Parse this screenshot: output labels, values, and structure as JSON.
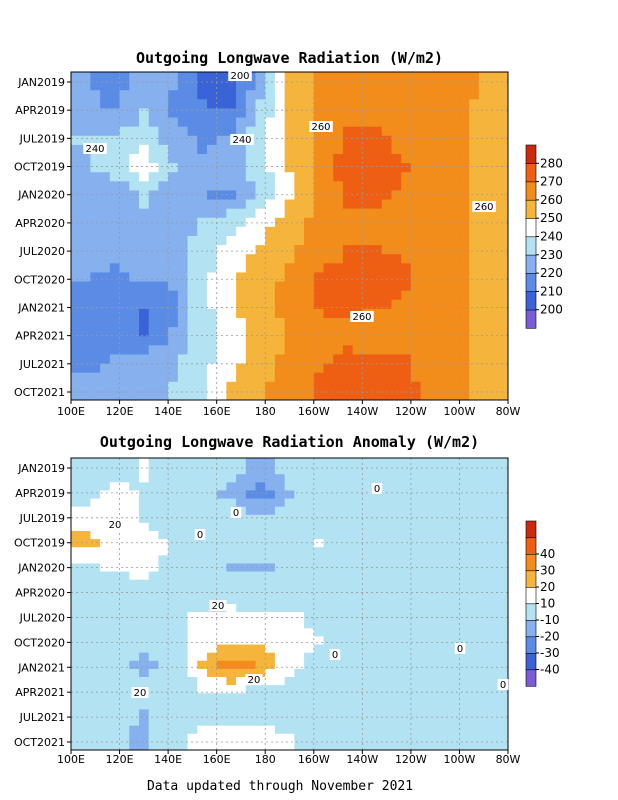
{
  "footer": "Data updated through November 2021",
  "chart_data": [
    {
      "type": "heatmap",
      "title": "Outgoing Longwave Radiation (W/m2)",
      "xlabel": "",
      "ylabel": "",
      "x_ticks": [
        "100E",
        "120E",
        "140E",
        "160E",
        "180",
        "160W",
        "140W",
        "120W",
        "100W",
        "80W"
      ],
      "y_ticks": [
        "JAN2019",
        "APR2019",
        "JUL2019",
        "OCT2019",
        "JAN2020",
        "APR2020",
        "JUL2020",
        "OCT2020",
        "JAN2021",
        "APR2021",
        "JUL2021",
        "OCT2021"
      ],
      "colorbar": {
        "levels": [
          200,
          210,
          220,
          230,
          240,
          250,
          260,
          270,
          280
        ],
        "colors": [
          "#7b5bd6",
          "#3b63d8",
          "#5a8ce6",
          "#86b0ee",
          "#b3e3f3",
          "#ffffff",
          "#f5b43c",
          "#f28c1a",
          "#ee5f13",
          "#cc2a0f"
        ]
      },
      "contour_labels": [
        "200",
        "240",
        "240",
        "260",
        "260",
        "260"
      ],
      "values": [
        [
          221,
          215,
          225,
          220,
          208,
          202,
          228,
          255,
          262,
          264,
          266,
          265,
          264,
          262,
          258
        ],
        [
          224,
          220,
          230,
          218,
          212,
          210,
          232,
          254,
          262,
          266,
          266,
          264,
          262,
          260,
          256
        ],
        [
          230,
          232,
          238,
          225,
          218,
          222,
          238,
          250,
          262,
          272,
          272,
          266,
          262,
          260,
          256
        ],
        [
          228,
          236,
          246,
          230,
          222,
          224,
          236,
          250,
          264,
          274,
          274,
          270,
          264,
          260,
          256
        ],
        [
          225,
          220,
          232,
          222,
          220,
          218,
          230,
          248,
          262,
          272,
          272,
          268,
          262,
          260,
          256
        ],
        [
          226,
          220,
          228,
          224,
          230,
          236,
          245,
          256,
          262,
          266,
          266,
          264,
          262,
          260,
          256
        ],
        [
          224,
          222,
          225,
          226,
          234,
          244,
          252,
          258,
          264,
          270,
          270,
          268,
          262,
          260,
          256
        ],
        [
          220,
          218,
          222,
          222,
          236,
          248,
          255,
          262,
          272,
          274,
          274,
          272,
          264,
          260,
          256
        ],
        [
          215,
          213,
          210,
          218,
          236,
          248,
          256,
          264,
          272,
          274,
          272,
          268,
          264,
          260,
          256
        ],
        [
          216,
          215,
          208,
          220,
          236,
          246,
          254,
          260,
          264,
          266,
          262,
          262,
          262,
          260,
          256
        ],
        [
          218,
          220,
          222,
          228,
          236,
          246,
          256,
          262,
          268,
          272,
          272,
          270,
          266,
          260,
          256
        ],
        [
          222,
          222,
          226,
          230,
          238,
          250,
          258,
          264,
          272,
          276,
          274,
          272,
          266,
          260,
          256
        ]
      ]
    },
    {
      "type": "heatmap",
      "title": "Outgoing Longwave Radiation Anomaly (W/m2)",
      "xlabel": "",
      "ylabel": "",
      "x_ticks": [
        "100E",
        "120E",
        "140E",
        "160E",
        "180",
        "160W",
        "140W",
        "120W",
        "100W",
        "80W"
      ],
      "y_ticks": [
        "JAN2019",
        "APR2019",
        "JUL2019",
        "OCT2019",
        "JAN2020",
        "APR2020",
        "JUL2020",
        "OCT2020",
        "JAN2021",
        "APR2021",
        "JUL2021",
        "OCT2021"
      ],
      "colorbar": {
        "levels": [
          -40,
          -30,
          -20,
          -10,
          10,
          20,
          30,
          40
        ],
        "colors": [
          "#7b5bd6",
          "#3b63d8",
          "#5a8ce6",
          "#86b0ee",
          "#b3e3f3",
          "#ffffff",
          "#f5b43c",
          "#f28c1a",
          "#ee5f13",
          "#cc2a0f"
        ]
      },
      "contour_labels": [
        "20",
        "0",
        "0",
        "20",
        "0",
        "20",
        "20",
        "0",
        "0",
        "0"
      ],
      "values": [
        [
          0,
          4,
          12,
          2,
          0,
          -4,
          -18,
          -6,
          2,
          0,
          0,
          0,
          0,
          0,
          0
        ],
        [
          4,
          14,
          8,
          0,
          -2,
          -14,
          -24,
          -12,
          0,
          0,
          0,
          0,
          0,
          0,
          0
        ],
        [
          16,
          18,
          6,
          2,
          0,
          -2,
          -6,
          -4,
          0,
          0,
          0,
          0,
          0,
          0,
          0
        ],
        [
          22,
          16,
          18,
          8,
          2,
          0,
          -4,
          6,
          12,
          2,
          0,
          0,
          0,
          0,
          0
        ],
        [
          8,
          12,
          14,
          6,
          0,
          -14,
          -12,
          -6,
          0,
          0,
          0,
          0,
          0,
          0,
          4
        ],
        [
          0,
          2,
          4,
          0,
          2,
          2,
          0,
          0,
          0,
          0,
          0,
          0,
          0,
          0,
          0
        ],
        [
          0,
          0,
          2,
          6,
          12,
          14,
          14,
          12,
          6,
          0,
          0,
          0,
          0,
          0,
          0
        ],
        [
          0,
          -2,
          -4,
          6,
          16,
          18,
          18,
          16,
          10,
          0,
          0,
          0,
          0,
          0,
          0
        ],
        [
          0,
          -6,
          -14,
          -6,
          22,
          36,
          28,
          16,
          4,
          0,
          0,
          0,
          0,
          0,
          0
        ],
        [
          6,
          -2,
          -4,
          4,
          10,
          12,
          8,
          4,
          0,
          0,
          0,
          0,
          0,
          0,
          0
        ],
        [
          2,
          -4,
          -12,
          0,
          6,
          4,
          2,
          0,
          0,
          0,
          0,
          0,
          0,
          0,
          0
        ],
        [
          0,
          -6,
          -14,
          4,
          16,
          18,
          16,
          12,
          4,
          0,
          0,
          0,
          0,
          0,
          0
        ]
      ]
    }
  ]
}
